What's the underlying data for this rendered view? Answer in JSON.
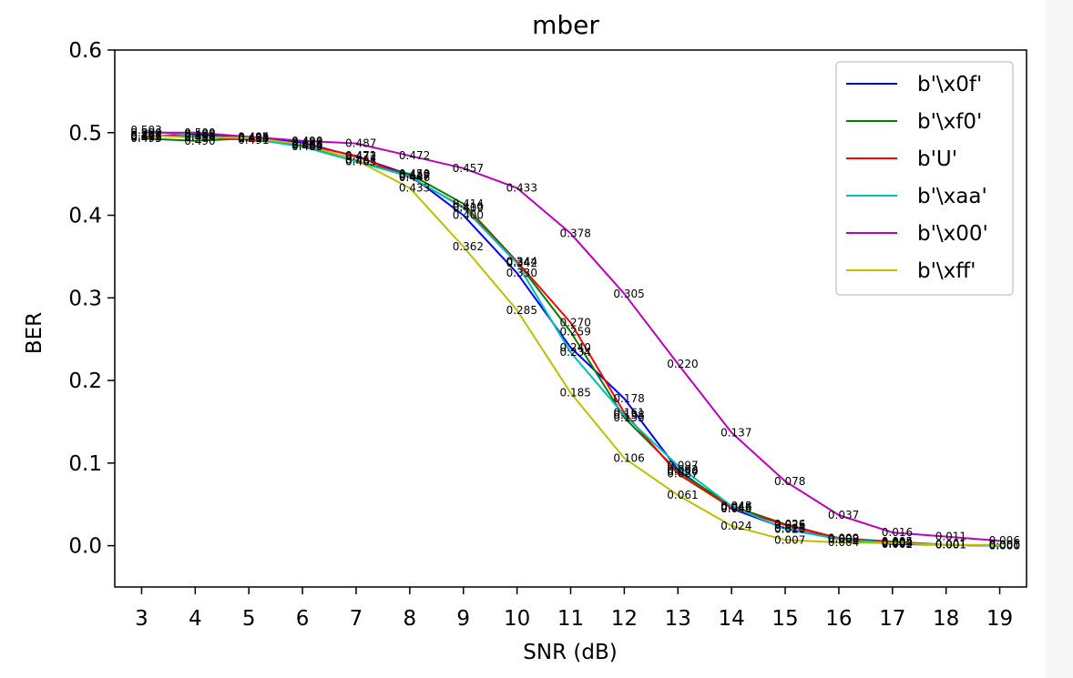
{
  "chart_data": {
    "type": "line",
    "title": "mber",
    "xlabel": "SNR (dB)",
    "ylabel": "BER",
    "xlim": [
      2.5,
      19.5
    ],
    "ylim": [
      -0.05,
      0.6
    ],
    "x": [
      3,
      4,
      5,
      6,
      7,
      8,
      9,
      10,
      11,
      12,
      13,
      14,
      15,
      16,
      17,
      18,
      19
    ],
    "xticks": [
      "3",
      "4",
      "5",
      "6",
      "7",
      "8",
      "9",
      "10",
      "11",
      "12",
      "13",
      "14",
      "15",
      "16",
      "17",
      "18",
      "19"
    ],
    "yticks": [
      0.0,
      0.1,
      0.2,
      0.3,
      0.4,
      0.5,
      0.6
    ],
    "ytick_labels": [
      "0.0",
      "0.1",
      "0.2",
      "0.3",
      "0.4",
      "0.5",
      "0.6"
    ],
    "legend_position": "upper-right",
    "series": [
      {
        "name": "b'\\x0f'",
        "color": "#0000ff",
        "values": [
          0.495,
          0.498,
          0.495,
          0.488,
          0.471,
          0.449,
          0.4,
          0.33,
          0.24,
          0.178,
          0.092,
          0.045,
          0.021,
          0.008,
          0.002,
          0.001,
          0.0
        ],
        "labels": [
          "0.495",
          "0.498",
          "0.495",
          "0.488",
          "0.471",
          "0.449",
          "0.400",
          "0.330",
          "0.240",
          "0.178",
          "0.092",
          "0.045",
          "0.021",
          "0.008",
          "0.002",
          "0.001",
          "0.000"
        ]
      },
      {
        "name": "b'\\xf0'",
        "color": "#008000",
        "values": [
          0.493,
          0.49,
          0.493,
          0.485,
          0.465,
          0.45,
          0.414,
          0.344,
          0.259,
          0.155,
          0.09,
          0.048,
          0.026,
          0.009,
          0.005,
          0.001,
          0.0
        ],
        "labels": [
          "0.493",
          "0.490",
          "0.493",
          "0.485",
          "0.465",
          "0.450",
          "0.414",
          "0.344",
          "0.259",
          "0.155",
          "0.090",
          "0.048",
          "0.026",
          "0.009",
          "0.005",
          "0.001",
          "0.000"
        ]
      },
      {
        "name": "b'U'",
        "color": "#ff0000",
        "values": [
          0.496,
          0.496,
          0.491,
          0.486,
          0.472,
          0.446,
          0.41,
          0.344,
          0.27,
          0.161,
          0.087,
          0.046,
          0.025,
          0.009,
          0.004,
          0.001,
          0.0
        ],
        "labels": [
          "0.496",
          "0.496",
          "0.491",
          "0.486",
          "0.472",
          "0.446",
          "0.410",
          "0.344",
          "0.270",
          "0.161",
          "0.087",
          "0.046",
          "0.025",
          "0.009",
          "0.004",
          "0.001",
          "0.000"
        ]
      },
      {
        "name": "b'\\xaa'",
        "color": "#00bfbf",
        "values": [
          0.503,
          0.496,
          0.493,
          0.483,
          0.465,
          0.447,
          0.409,
          0.342,
          0.234,
          0.158,
          0.097,
          0.048,
          0.02,
          0.008,
          0.003,
          0.001,
          0.0
        ],
        "labels": [
          "0.503",
          "0.496",
          "0.493",
          "0.483",
          "0.465",
          "0.447",
          "0.409",
          "0.342",
          "0.234",
          "0.158",
          "0.097",
          "0.048",
          "0.020",
          "0.008",
          "0.003",
          "0.001",
          "0.000"
        ]
      },
      {
        "name": "b'\\x00'",
        "color": "#bf00bf",
        "values": [
          0.5,
          0.5,
          0.495,
          0.49,
          0.487,
          0.472,
          0.457,
          0.433,
          0.378,
          0.305,
          0.22,
          0.137,
          0.078,
          0.037,
          0.016,
          0.011,
          0.006
        ],
        "labels": [
          "0.500",
          "0.500",
          "0.495",
          "0.490",
          "0.487",
          "0.472",
          "0.457",
          "0.433",
          "0.378",
          "0.305",
          "0.220",
          "0.137",
          "0.078",
          "0.037",
          "0.016",
          "0.011",
          "0.006"
        ]
      },
      {
        "name": "b'\\xff'",
        "color": "#bfbf00",
        "values": [
          0.497,
          0.494,
          0.494,
          0.486,
          0.467,
          0.433,
          0.362,
          0.285,
          0.185,
          0.106,
          0.061,
          0.024,
          0.007,
          0.004,
          0.003,
          0.001,
          0.001
        ],
        "labels": [
          "0.497",
          "0.494",
          "0.494",
          "0.486",
          "0.467",
          "0.433",
          "0.362",
          "0.285",
          "0.185",
          "0.106",
          "0.061",
          "0.024",
          "0.007",
          "0.004",
          "0.003",
          "0.001",
          "0.001"
        ]
      }
    ]
  }
}
